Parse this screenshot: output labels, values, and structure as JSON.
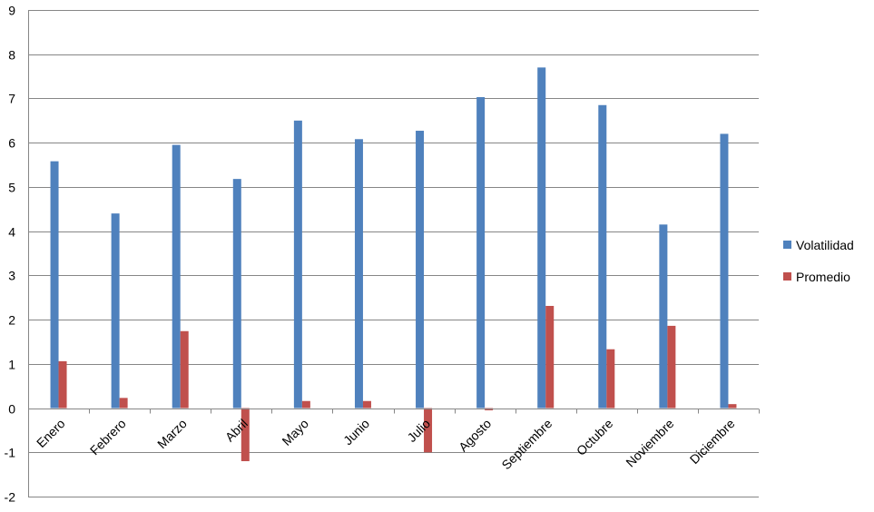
{
  "chart_data": {
    "type": "bar",
    "categories": [
      "Enero",
      "Febrero",
      "Marzo",
      "Abril",
      "Mayo",
      "Junio",
      "Julio",
      "Agosto",
      "Septiembre",
      "Octubre",
      "Noviembre",
      "Diciembre"
    ],
    "series": [
      {
        "name": "Volatilidad",
        "color": "#4f81bd",
        "values": [
          5.58,
          4.4,
          5.95,
          5.18,
          6.5,
          6.08,
          6.27,
          7.03,
          7.7,
          6.85,
          4.15,
          6.2
        ]
      },
      {
        "name": "Promedio",
        "color": "#c0504d",
        "values": [
          1.06,
          0.23,
          1.74,
          -1.2,
          0.16,
          0.16,
          -1.0,
          -0.05,
          2.31,
          1.33,
          1.86,
          0.09
        ]
      }
    ],
    "ylim": [
      -2,
      9
    ],
    "yticks": [
      -2,
      -1,
      0,
      1,
      2,
      3,
      4,
      5,
      6,
      7,
      8,
      9
    ],
    "grid": true,
    "legend_position": "right"
  }
}
